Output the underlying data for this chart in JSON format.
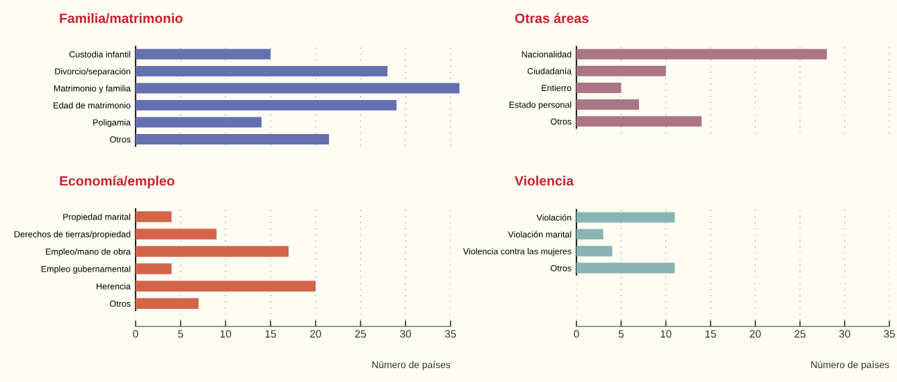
{
  "chart_data": [
    {
      "type": "bar",
      "orientation": "horizontal",
      "title": "Familia/matrimonio",
      "categories": [
        "Custodia infantil",
        "Divorcio/separación",
        "Matrimonio y familia",
        "Edad de matrimonio",
        "Poligamia",
        "Otros"
      ],
      "values": [
        15,
        28,
        36,
        29,
        14,
        21.5
      ],
      "color": "#6470b0",
      "xticks": [
        0,
        5,
        10,
        15,
        20,
        25,
        30,
        35
      ],
      "tick_labels": "y",
      "grid": "x"
    },
    {
      "type": "bar",
      "orientation": "horizontal",
      "title": "Otras áreas",
      "categories": [
        "Nacionalidad",
        "Ciudadanía",
        "Entierro",
        "Estado personal",
        "Otros"
      ],
      "values": [
        28,
        10,
        5,
        7,
        14
      ],
      "color": "#ab7585",
      "xticks": [
        0,
        5,
        10,
        15,
        20,
        25,
        30,
        35
      ],
      "tick_labels": "y",
      "grid": "x"
    },
    {
      "type": "bar",
      "orientation": "horizontal",
      "title": "Economía/empleo",
      "xlabel": "Número de países",
      "categories": [
        "Propiedad marital",
        "Derechos de tierras/propiedad",
        "Empleo/mano de obra",
        "Empleo gubernamental",
        "Herencia",
        "Otros"
      ],
      "values": [
        4,
        9,
        17,
        4,
        20,
        7
      ],
      "color": "#d2644a",
      "xlim": [
        0,
        35
      ],
      "xticks": [
        0,
        5,
        10,
        15,
        20,
        25,
        30,
        35
      ],
      "grid": "x"
    },
    {
      "type": "bar",
      "orientation": "horizontal",
      "title": "Violencia",
      "xlabel": "Número de países",
      "categories": [
        "Violación",
        "Violación marital",
        "Violencia contra las mujeres",
        "Otros"
      ],
      "values": [
        11,
        3,
        4,
        11
      ],
      "color": "#8ab4b3",
      "xlim": [
        0,
        35
      ],
      "xticks": [
        0,
        5,
        10,
        15,
        20,
        25,
        30,
        35
      ],
      "grid": "x"
    }
  ]
}
